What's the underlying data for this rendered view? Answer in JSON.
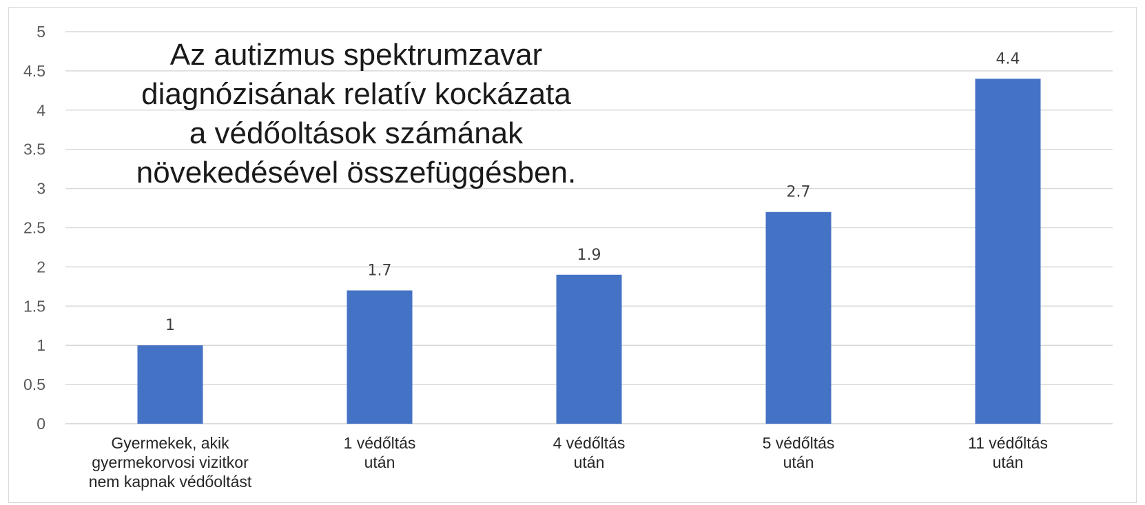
{
  "chart_data": {
    "type": "bar",
    "title_lines": [
      "Az autizmus spektrumzavar",
      "diagnózisának relatív kockázata",
      "a védőoltások számának",
      "növekedésével összefüggésben."
    ],
    "categories": [
      [
        "Gyermekek, akik",
        "gyermekorvosi vizitkor",
        "nem kapnak védőoltást"
      ],
      [
        "1 védőltás",
        "után"
      ],
      [
        "4 védőltás",
        "után"
      ],
      [
        "5 védőltás",
        "után"
      ],
      [
        "11 védőltás",
        "után"
      ]
    ],
    "values": [
      1,
      1.7,
      1.9,
      2.7,
      4.4
    ],
    "data_labels": [
      "1",
      "1.7",
      "1.9",
      "2.7",
      "4.4"
    ],
    "ylim": [
      0,
      5
    ],
    "yticks": [
      "0",
      "0.5",
      "1",
      "1.5",
      "2",
      "2.5",
      "3",
      "3.5",
      "4",
      "4.5",
      "5"
    ],
    "grid": true,
    "legend": "none",
    "bar_color": "#4472C4"
  }
}
